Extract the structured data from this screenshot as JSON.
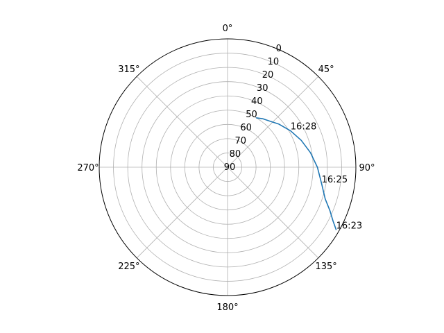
{
  "chart_data": {
    "type": "line",
    "projection": "polar",
    "theta_zero_location": "N",
    "theta_direction": "clockwise",
    "r_axis_inverted": true,
    "rlim": [
      90,
      0
    ],
    "grid": true,
    "legend": "none",
    "angle_ticks": [
      "0°",
      "45°",
      "90°",
      "135°",
      "180°",
      "225°",
      "270°",
      "315°"
    ],
    "radial_ticks": [
      "0",
      "10",
      "20",
      "30",
      "40",
      "50",
      "60",
      "70",
      "80",
      "90"
    ],
    "radial_tick_values": [
      0,
      10,
      20,
      30,
      40,
      50,
      60,
      70,
      80,
      90
    ],
    "series": [
      {
        "color": "#1f77b4",
        "points": [
          {
            "theta": 120,
            "r": 2
          },
          {
            "theta": 117,
            "r": 7
          },
          {
            "theta": 113,
            "r": 12
          },
          {
            "theta": 108,
            "r": 18
          },
          {
            "theta": 100,
            "r": 23
          },
          {
            "theta": 90,
            "r": 27
          },
          {
            "theta": 80,
            "r": 31
          },
          {
            "theta": 70,
            "r": 35
          },
          {
            "theta": 60,
            "r": 39
          },
          {
            "theta": 50,
            "r": 43
          },
          {
            "theta": 43,
            "r": 46
          },
          {
            "theta": 36,
            "r": 48
          },
          {
            "theta": 30,
            "r": 50
          }
        ]
      }
    ],
    "annotations": [
      {
        "text": "16:23",
        "theta": 120,
        "r": 2
      },
      {
        "text": "16:25",
        "theta": 100,
        "r": 23
      },
      {
        "text": "16:28",
        "theta": 60,
        "r": 39
      }
    ]
  }
}
